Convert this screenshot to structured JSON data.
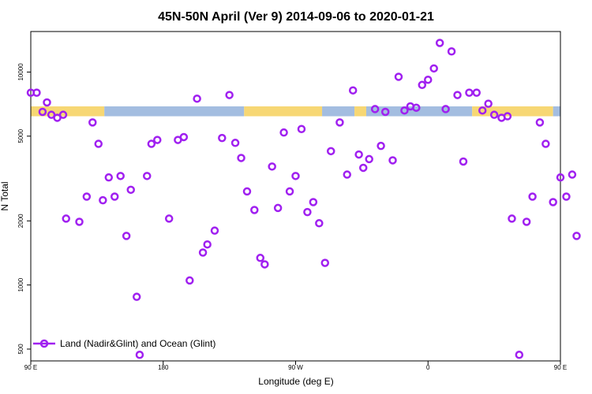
{
  "chart_data": {
    "type": "scatter",
    "title": "45N-50N April (Ver 9)   2014-09-06 to 2020-01-21",
    "xlabel": "Longitude (deg E)",
    "ylabel": "N Total",
    "y_scale": "log",
    "xlim": [
      90,
      450
    ],
    "ylim": [
      440,
      15500
    ],
    "x_ticks": [
      {
        "value": 90,
        "label": "90 E"
      },
      {
        "value": 180,
        "label": "180"
      },
      {
        "value": 270,
        "label": "90 W"
      },
      {
        "value": 360,
        "label": "0"
      },
      {
        "value": 450,
        "label": "90 E"
      },
      {
        "value": 540,
        "label": "180"
      }
    ],
    "y_ticks": [
      {
        "value": 500,
        "label": "500"
      },
      {
        "value": 1000,
        "label": "1000"
      },
      {
        "value": 2000,
        "label": "2000"
      },
      {
        "value": 5000,
        "label": "5000"
      },
      {
        "value": 10000,
        "label": "10000"
      }
    ],
    "x_tick_positions_note": "longitude axis runs 90E → 180 → 90W → 0 → 90E → 180",
    "land_ocean_band": {
      "y_range": [
        6200,
        6900
      ],
      "land_color": "#f7d774",
      "ocean_color": "#a3bde0",
      "segments": [
        {
          "type": "land",
          "x": [
            90,
            140
          ]
        },
        {
          "type": "ocean",
          "x": [
            140,
            235
          ]
        },
        {
          "type": "land",
          "x": [
            235,
            288
          ]
        },
        {
          "type": "ocean",
          "x": [
            288,
            310
          ]
        },
        {
          "type": "land",
          "x": [
            310,
            318
          ]
        },
        {
          "type": "ocean",
          "x": [
            318,
            390
          ]
        },
        {
          "type": "land",
          "x": [
            390,
            445
          ]
        },
        {
          "type": "ocean",
          "x": [
            445,
            505
          ]
        },
        {
          "type": "land",
          "x": [
            505,
            600
          ]
        },
        {
          "type": "ocean",
          "x": [
            600,
            630
          ]
        }
      ]
    },
    "series": [
      {
        "name": "Land (Nadir&Glint) and Ocean (Glint)",
        "color": "#a020f0",
        "points": [
          [
            90,
            8000
          ],
          [
            94,
            8000
          ],
          [
            98,
            6500
          ],
          [
            101,
            7200
          ],
          [
            104,
            6300
          ],
          [
            108,
            6100
          ],
          [
            112,
            6300
          ],
          [
            114,
            2050
          ],
          [
            123,
            1980
          ],
          [
            128,
            2600
          ],
          [
            132,
            5800
          ],
          [
            136,
            4600
          ],
          [
            139,
            2500
          ],
          [
            143,
            3200
          ],
          [
            147,
            2600
          ],
          [
            151,
            3250
          ],
          [
            155,
            1700
          ],
          [
            158,
            2800
          ],
          [
            162,
            880
          ],
          [
            164,
            470
          ],
          [
            169,
            3250
          ],
          [
            172,
            4600
          ],
          [
            176,
            4800
          ],
          [
            184,
            2050
          ],
          [
            190,
            4800
          ],
          [
            194,
            4950
          ],
          [
            198,
            1050
          ],
          [
            203,
            7500
          ],
          [
            207,
            1420
          ],
          [
            210,
            1550
          ],
          [
            215,
            1800
          ],
          [
            220,
            4900
          ],
          [
            225,
            7800
          ],
          [
            229,
            4650
          ],
          [
            233,
            3950
          ],
          [
            237,
            2750
          ],
          [
            242,
            2250
          ],
          [
            246,
            1340
          ],
          [
            249,
            1250
          ],
          [
            254,
            3600
          ],
          [
            258,
            2300
          ],
          [
            262,
            5200
          ],
          [
            266,
            2750
          ],
          [
            270,
            3250
          ],
          [
            274,
            5400
          ],
          [
            278,
            2200
          ],
          [
            282,
            2450
          ],
          [
            286,
            1950
          ],
          [
            290,
            1270
          ],
          [
            294,
            4250
          ],
          [
            300,
            5800
          ],
          [
            305,
            3300
          ],
          [
            309,
            8200
          ],
          [
            313,
            4100
          ],
          [
            316,
            3550
          ],
          [
            320,
            3900
          ],
          [
            324,
            6700
          ],
          [
            328,
            4500
          ],
          [
            331,
            6500
          ],
          [
            336,
            3850
          ],
          [
            340,
            9500
          ],
          [
            344,
            6600
          ],
          [
            348,
            6900
          ],
          [
            352,
            6800
          ],
          [
            356,
            8700
          ],
          [
            360,
            9200
          ],
          [
            364,
            10400
          ],
          [
            368,
            13700
          ],
          [
            372,
            6700
          ],
          [
            376,
            12500
          ],
          [
            380,
            7800
          ],
          [
            384,
            3800
          ],
          [
            388,
            8000
          ],
          [
            393,
            8000
          ],
          [
            397,
            6600
          ],
          [
            401,
            7100
          ],
          [
            405,
            6300
          ],
          [
            410,
            6100
          ],
          [
            414,
            6200
          ],
          [
            417,
            2050
          ],
          [
            422,
            470
          ],
          [
            427,
            1980
          ],
          [
            431,
            2600
          ],
          [
            436,
            5800
          ],
          [
            440,
            4600
          ],
          [
            445,
            2450
          ],
          [
            450,
            3200
          ],
          [
            454,
            2600
          ],
          [
            458,
            3300
          ],
          [
            461,
            1700
          ]
        ]
      }
    ],
    "legend": {
      "position": "bottom-left",
      "entries": [
        "Land (Nadir&Glint) and Ocean (Glint)"
      ]
    }
  }
}
